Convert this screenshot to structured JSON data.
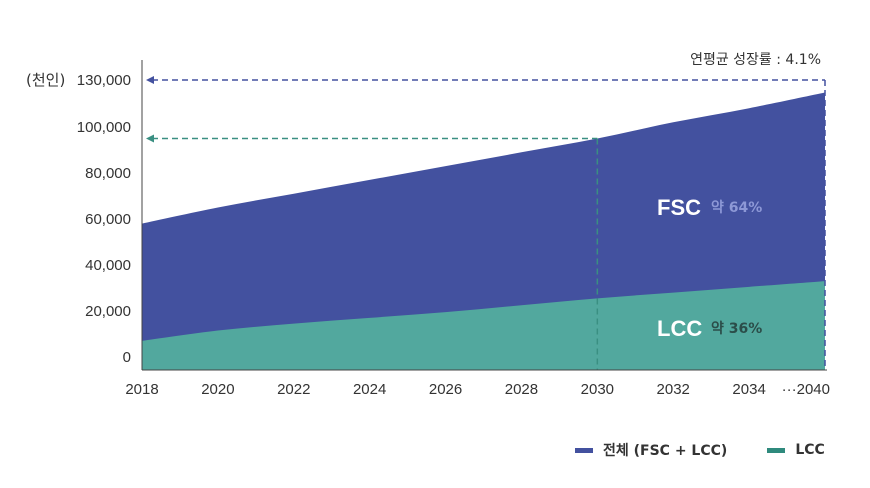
{
  "chart_data": {
    "type": "area",
    "unit_label": "(천인)",
    "growth_note": "연평균 성장률 : 4.1%",
    "x": [
      2018,
      2020,
      2022,
      2024,
      2026,
      2028,
      2030,
      2032,
      2034,
      2040
    ],
    "x_labels": [
      "2018",
      "2020",
      "2022",
      "2024",
      "2026",
      "2028",
      "2030",
      "2032",
      "2034",
      "···2040"
    ],
    "y_ticks": [
      0,
      20000,
      40000,
      60000,
      80000,
      100000,
      130000
    ],
    "y_tick_labels": [
      "0",
      "20,000",
      "40,000",
      "60,000",
      "80,000",
      "100,000",
      "130,000"
    ],
    "series": [
      {
        "name": "전체 (FSC + LCC)",
        "color": "#43519f",
        "values": [
          58000,
          65000,
          71000,
          77000,
          83000,
          89000,
          95000,
          103000,
          112000,
          122000
        ]
      },
      {
        "name": "LCC",
        "color": "#52a89e",
        "values": [
          7000,
          11500,
          14500,
          17000,
          19500,
          22500,
          25500,
          28000,
          30500,
          33000
        ]
      }
    ],
    "area_labels": [
      {
        "name": "FSC",
        "share": "약 64%",
        "share_color": "#8d98d6"
      },
      {
        "name": "LCC",
        "share": "약 36%",
        "share_color": "#2b4d49"
      }
    ],
    "reference_lines": [
      {
        "x": 2040,
        "y": 130000,
        "color": "#43519f"
      },
      {
        "x": 2030,
        "y": 95000,
        "color": "#3a8f82"
      }
    ]
  }
}
